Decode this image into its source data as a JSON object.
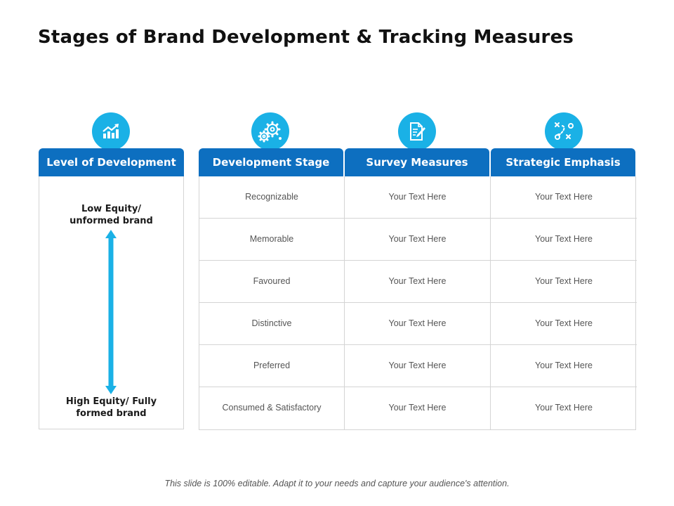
{
  "title": "Stages of Brand Development & Tracking Measures",
  "colors": {
    "header_blue": "#0d6fc0",
    "icon_cyan": "#1ab1e6"
  },
  "icons": [
    "growth-chart-icon",
    "gears-icon",
    "document-pen-icon",
    "strategy-play-icon"
  ],
  "headers": {
    "level": "Level of Development",
    "stage": "Development Stage",
    "survey": "Survey Measures",
    "strategic": "Strategic Emphasis"
  },
  "level": {
    "top": [
      "Low Equity/",
      "unformed brand"
    ],
    "bottom": [
      "High Equity/ Fully",
      "formed brand"
    ]
  },
  "rows": [
    {
      "stage": "Recognizable",
      "survey": "Your Text Here",
      "strategic": "Your Text Here"
    },
    {
      "stage": "Memorable",
      "survey": "Your Text Here",
      "strategic": "Your Text Here"
    },
    {
      "stage": "Favoured",
      "survey": "Your Text Here",
      "strategic": "Your Text Here"
    },
    {
      "stage": "Distinctive",
      "survey": "Your Text Here",
      "strategic": "Your Text Here"
    },
    {
      "stage": "Preferred",
      "survey": "Your Text Here",
      "strategic": "Your Text Here"
    },
    {
      "stage": "Consumed & Satisfactory",
      "survey": "Your Text Here",
      "strategic": "Your Text Here"
    }
  ],
  "footer": "This slide is 100% editable. Adapt it to your needs and capture your audience's attention."
}
